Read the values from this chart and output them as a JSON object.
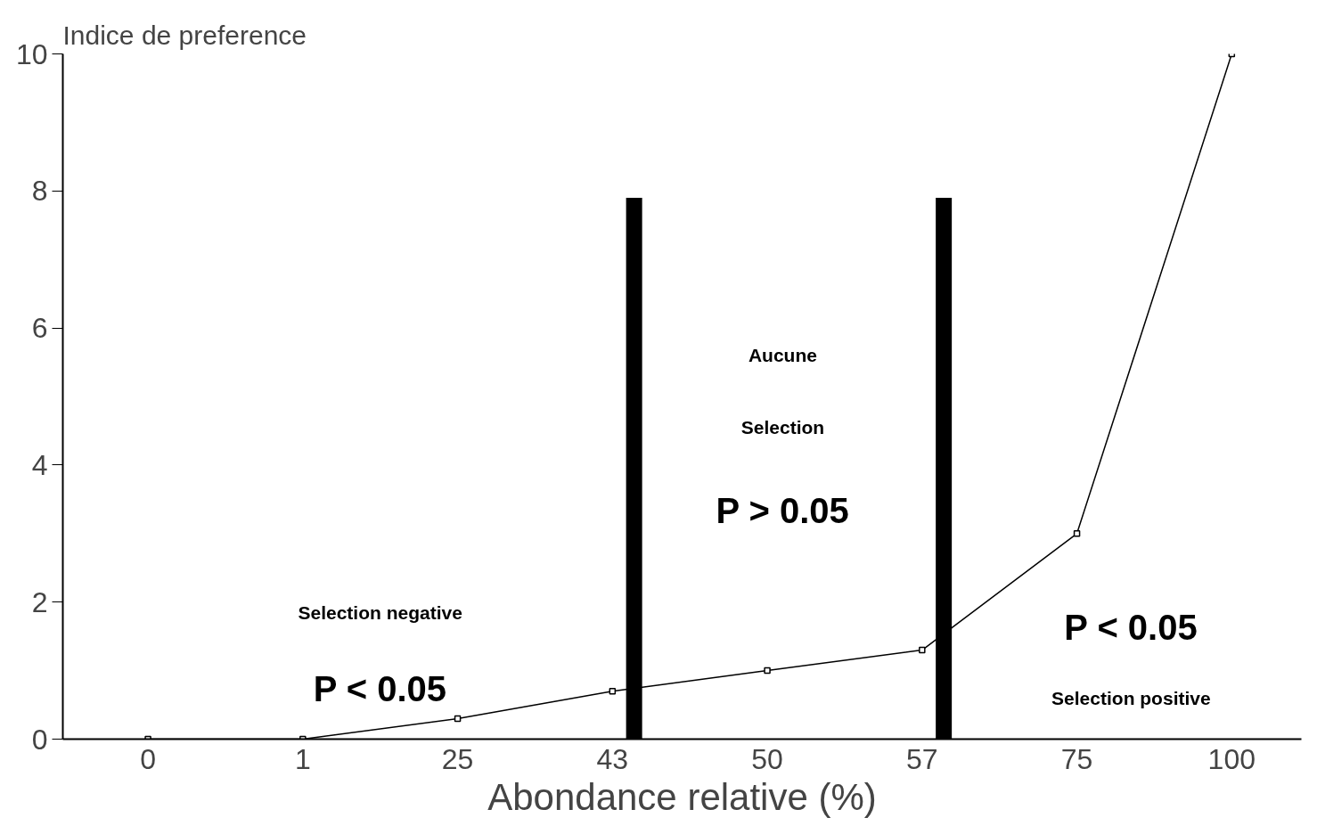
{
  "chart_data": {
    "type": "line",
    "ylabel": "Indice de preference",
    "xlabel": "Abondance relative (%)",
    "categories": [
      "0",
      "1",
      "25",
      "43",
      "50",
      "57",
      "75",
      "100"
    ],
    "series": [
      {
        "color": "#000000",
        "values": [
          0,
          0,
          0.3,
          0.7,
          1.0,
          1.3,
          3.0,
          10
        ]
      }
    ],
    "ylim": [
      0,
      10
    ],
    "yticks": [
      0,
      2,
      4,
      6,
      8,
      10
    ],
    "marker": "square",
    "line_style": "solid",
    "grid": false,
    "ref_lines": [
      {
        "axis": "x",
        "value": "43",
        "color": "#000000"
      },
      {
        "axis": "x",
        "value": "57",
        "color": "#000000"
      }
    ],
    "annotations": [
      "Selection negative",
      "P < 0.05",
      "Aucune",
      "Selection",
      "P > 0.05",
      "P < 0.05",
      "Selection positive"
    ]
  }
}
